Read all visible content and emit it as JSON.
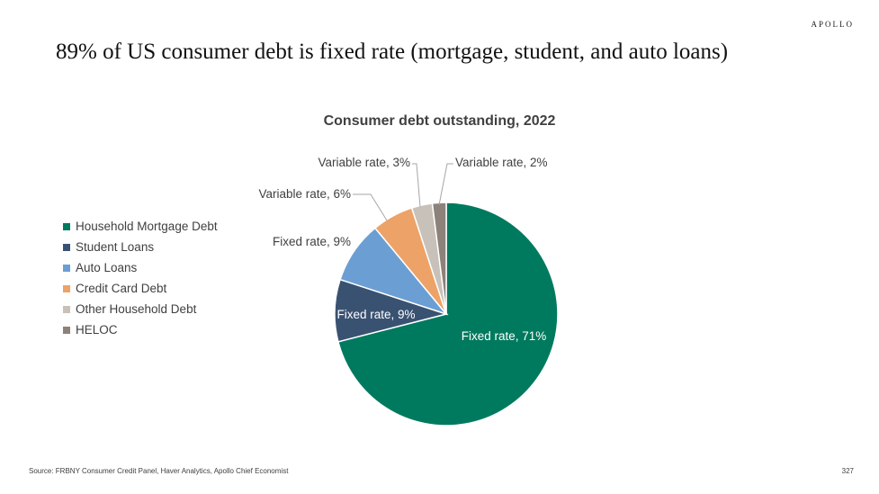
{
  "brand": "APOLLO",
  "headline": "89% of US consumer debt is fixed rate (mortgage, student, and auto loans)",
  "footer": {
    "source": "Source: FRBNY Consumer Credit Panel, Haver Analytics, Apollo Chief Economist",
    "page_number": "327"
  },
  "chart_data": {
    "type": "pie",
    "title": "Consumer debt outstanding, 2022",
    "legend_position": "left",
    "start_angle_deg": 0,
    "direction": "clockwise",
    "slices": [
      {
        "name": "Household Mortgage Debt",
        "label": "Fixed rate, 71%",
        "value": 71,
        "color": "#007a5e",
        "label_color": "#ffffff"
      },
      {
        "name": "Student Loans",
        "label": "Fixed rate, 9%",
        "value": 9,
        "color": "#3a5272",
        "label_color": "#ffffff"
      },
      {
        "name": "Auto Loans",
        "label": "Fixed rate, 9%",
        "value": 9,
        "color": "#6b9fd4",
        "label_color": "#404040"
      },
      {
        "name": "Credit Card Debt",
        "label": "Variable rate, 6%",
        "value": 6,
        "color": "#eda267",
        "label_color": "#404040"
      },
      {
        "name": "Other Household Debt",
        "label": "Variable rate, 3%",
        "value": 3,
        "color": "#c8c1b9",
        "label_color": "#404040"
      },
      {
        "name": "HELOC",
        "label": "Variable rate, 2%",
        "value": 2,
        "color": "#8c8279",
        "label_color": "#404040"
      }
    ]
  }
}
